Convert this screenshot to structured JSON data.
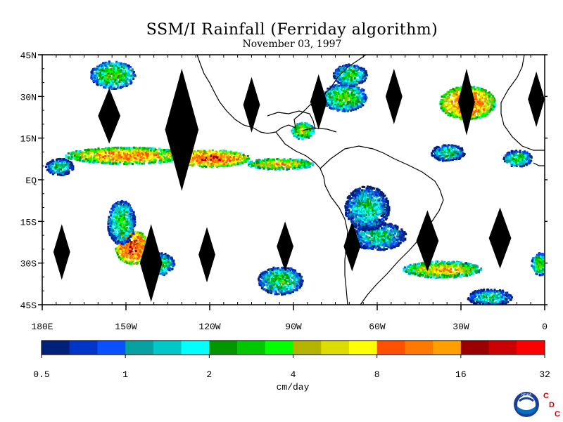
{
  "title": "SSM/I Rainfall (Ferriday algorithm)",
  "subtitle": "November 03, 1997",
  "chart_data": {
    "type": "heatmap",
    "title": "SSM/I Rainfall (Ferriday algorithm)",
    "subtitle": "November 03, 1997",
    "map_extent": {
      "lon": [
        -180,
        0
      ],
      "lat": [
        -45,
        45
      ]
    },
    "y_ticks": [
      {
        "lat": 45,
        "label": "45N"
      },
      {
        "lat": 30,
        "label": "30N"
      },
      {
        "lat": 15,
        "label": "15N"
      },
      {
        "lat": 0,
        "label": "EQ"
      },
      {
        "lat": -15,
        "label": "15S"
      },
      {
        "lat": -30,
        "label": "30S"
      },
      {
        "lat": -45,
        "label": "45S"
      }
    ],
    "x_ticks": [
      {
        "lon": -180,
        "label": "180E"
      },
      {
        "lon": -150,
        "label": "150W"
      },
      {
        "lon": -120,
        "label": "120W"
      },
      {
        "lon": -90,
        "label": "90W"
      },
      {
        "lon": -60,
        "label": "60W"
      },
      {
        "lon": -30,
        "label": "30W"
      },
      {
        "lon": 0,
        "label": "0"
      }
    ],
    "colorbar": {
      "unit": "cm/day",
      "labels": [
        "0.5",
        "1",
        "2",
        "4",
        "8",
        "16",
        "32"
      ],
      "colors": [
        "#00207a",
        "#0036c8",
        "#0a50ff",
        "#06a0a0",
        "#00c8c8",
        "#00ffff",
        "#009600",
        "#00c800",
        "#00ff00",
        "#b4b400",
        "#dcdc00",
        "#ffff00",
        "#ff5000",
        "#ff7800",
        "#ffa000",
        "#9a0000",
        "#cc0000",
        "#ff0000"
      ]
    },
    "rain_regions": [
      {
        "lon": -150,
        "lat": 9,
        "rx": 22,
        "ry": 3,
        "intensity": 14
      },
      {
        "lon": -120,
        "lat": 8,
        "rx": 14,
        "ry": 3,
        "intensity": 20
      },
      {
        "lon": -95,
        "lat": 6,
        "rx": 12,
        "ry": 2,
        "intensity": 10
      },
      {
        "lon": -28,
        "lat": 28,
        "rx": 10,
        "ry": 6,
        "intensity": 18
      },
      {
        "lon": -72,
        "lat": 30,
        "rx": 8,
        "ry": 5,
        "intensity": 5
      },
      {
        "lon": -70,
        "lat": 38,
        "rx": 6,
        "ry": 4,
        "intensity": 4
      },
      {
        "lon": -87,
        "lat": 18,
        "rx": 4,
        "ry": 3,
        "intensity": 8
      },
      {
        "lon": -148,
        "lat": -24,
        "rx": 6,
        "ry": 6,
        "intensity": 24
      },
      {
        "lon": -152,
        "lat": -15,
        "rx": 5,
        "ry": 8,
        "intensity": 4
      },
      {
        "lon": -60,
        "lat": -20,
        "rx": 10,
        "ry": 5,
        "intensity": 3
      },
      {
        "lon": -37,
        "lat": -32,
        "rx": 14,
        "ry": 3,
        "intensity": 10
      },
      {
        "lon": -95,
        "lat": -36,
        "rx": 8,
        "ry": 5,
        "intensity": 4
      },
      {
        "lon": -155,
        "lat": 38,
        "rx": 8,
        "ry": 5,
        "intensity": 5
      },
      {
        "lon": -174,
        "lat": 5,
        "rx": 5,
        "ry": 3,
        "intensity": 3
      },
      {
        "lon": -35,
        "lat": 10,
        "rx": 6,
        "ry": 3,
        "intensity": 3
      },
      {
        "lon": -10,
        "lat": 8,
        "rx": 5,
        "ry": 3,
        "intensity": 4
      },
      {
        "lon": -2,
        "lat": -30,
        "rx": 3,
        "ry": 4,
        "intensity": 5
      },
      {
        "lon": -20,
        "lat": -42,
        "rx": 8,
        "ry": 3,
        "intensity": 3
      },
      {
        "lon": -64,
        "lat": -10,
        "rx": 8,
        "ry": 8,
        "intensity": 3
      },
      {
        "lon": -138,
        "lat": -30,
        "rx": 5,
        "ry": 4,
        "intensity": 4
      }
    ],
    "data_gaps": [
      {
        "lon": -156,
        "lat": 23,
        "w": 4,
        "h": 20
      },
      {
        "lon": -130,
        "lat": 18,
        "w": 6,
        "h": 44
      },
      {
        "lon": -105,
        "lat": 27,
        "w": 3,
        "h": 20
      },
      {
        "lon": -81,
        "lat": 28,
        "w": 3,
        "h": 20
      },
      {
        "lon": -54,
        "lat": 30,
        "w": 3,
        "h": 20
      },
      {
        "lon": -28,
        "lat": 28,
        "w": 3,
        "h": 24
      },
      {
        "lon": -3,
        "lat": 29,
        "w": 3,
        "h": 20
      },
      {
        "lon": -173,
        "lat": -26,
        "w": 3,
        "h": 20
      },
      {
        "lon": -141,
        "lat": -30,
        "w": 4,
        "h": 28
      },
      {
        "lon": -121,
        "lat": -27,
        "w": 3,
        "h": 20
      },
      {
        "lon": -93,
        "lat": -24,
        "w": 3,
        "h": 18
      },
      {
        "lon": -69,
        "lat": -24,
        "w": 3,
        "h": 18
      },
      {
        "lon": -42,
        "lat": -22,
        "w": 4,
        "h": 22
      },
      {
        "lon": -16,
        "lat": -21,
        "w": 4,
        "h": 22
      }
    ]
  },
  "logo": {
    "noaa_text": "NOAA",
    "cdc_letters": [
      "C",
      "D",
      "C"
    ]
  }
}
